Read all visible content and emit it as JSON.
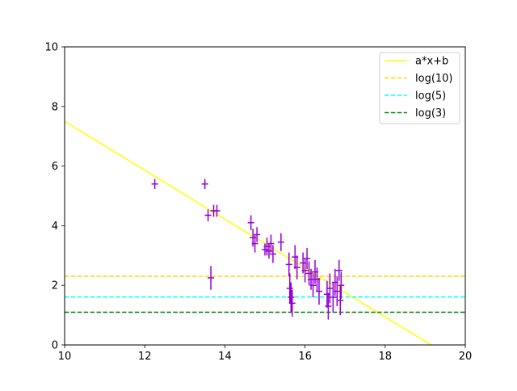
{
  "chart_data": {
    "type": "scatter",
    "title": "",
    "xlabel": "",
    "ylabel": "",
    "xlim": [
      10,
      20
    ],
    "ylim": [
      0,
      10
    ],
    "xticks": [
      10,
      12,
      14,
      16,
      18,
      20
    ],
    "yticks": [
      0,
      2,
      4,
      6,
      8,
      10
    ],
    "grid": false,
    "legend_position": "top-right",
    "fit_line": {
      "name": "a*x+b",
      "color": "#ffff00",
      "slope": -0.82,
      "intercept": 15.7
    },
    "hlines": [
      {
        "name": "log(10)",
        "y": 2.303,
        "color": "#ffd700"
      },
      {
        "name": "log(5)",
        "y": 1.609,
        "color": "#00ffff"
      },
      {
        "name": "log(3)",
        "y": 1.099,
        "color": "#008000"
      }
    ],
    "points_color": "#9400d3",
    "points": [
      {
        "x": 12.25,
        "y": 5.4,
        "yerr": 0.17
      },
      {
        "x": 13.5,
        "y": 5.4,
        "yerr": 0.17
      },
      {
        "x": 13.58,
        "y": 4.35,
        "yerr": 0.2
      },
      {
        "x": 13.65,
        "y": 2.25,
        "yerr": 0.4
      },
      {
        "x": 13.72,
        "y": 4.5,
        "yerr": 0.2
      },
      {
        "x": 13.8,
        "y": 4.5,
        "yerr": 0.2
      },
      {
        "x": 14.65,
        "y": 4.1,
        "yerr": 0.25
      },
      {
        "x": 14.7,
        "y": 3.6,
        "yerr": 0.3
      },
      {
        "x": 14.75,
        "y": 3.4,
        "yerr": 0.3
      },
      {
        "x": 14.8,
        "y": 3.7,
        "yerr": 0.25
      },
      {
        "x": 15.0,
        "y": 3.2,
        "yerr": 0.2
      },
      {
        "x": 15.05,
        "y": 3.3,
        "yerr": 0.3
      },
      {
        "x": 15.1,
        "y": 3.15,
        "yerr": 0.25
      },
      {
        "x": 15.15,
        "y": 3.4,
        "yerr": 0.3
      },
      {
        "x": 15.2,
        "y": 3.05,
        "yerr": 0.3
      },
      {
        "x": 15.4,
        "y": 3.45,
        "yerr": 0.3
      },
      {
        "x": 15.6,
        "y": 2.7,
        "yerr": 0.4
      },
      {
        "x": 15.62,
        "y": 1.9,
        "yerr": 0.5
      },
      {
        "x": 15.65,
        "y": 1.6,
        "yerr": 0.5
      },
      {
        "x": 15.68,
        "y": 1.4,
        "yerr": 0.45
      },
      {
        "x": 15.75,
        "y": 2.95,
        "yerr": 0.4
      },
      {
        "x": 15.8,
        "y": 2.6,
        "yerr": 0.4
      },
      {
        "x": 15.95,
        "y": 2.75,
        "yerr": 0.35
      },
      {
        "x": 16.0,
        "y": 2.5,
        "yerr": 0.4
      },
      {
        "x": 16.05,
        "y": 2.9,
        "yerr": 0.35
      },
      {
        "x": 16.1,
        "y": 2.4,
        "yerr": 0.4
      },
      {
        "x": 16.15,
        "y": 2.2,
        "yerr": 0.35
      },
      {
        "x": 16.2,
        "y": 2.0,
        "yerr": 0.4
      },
      {
        "x": 16.25,
        "y": 2.45,
        "yerr": 0.4
      },
      {
        "x": 16.3,
        "y": 2.2,
        "yerr": 0.4
      },
      {
        "x": 16.35,
        "y": 1.8,
        "yerr": 0.45
      },
      {
        "x": 16.55,
        "y": 1.7,
        "yerr": 0.45
      },
      {
        "x": 16.58,
        "y": 1.3,
        "yerr": 0.45
      },
      {
        "x": 16.62,
        "y": 1.9,
        "yerr": 0.5
      },
      {
        "x": 16.7,
        "y": 1.6,
        "yerr": 0.5
      },
      {
        "x": 16.75,
        "y": 2.1,
        "yerr": 0.45
      },
      {
        "x": 16.8,
        "y": 1.8,
        "yerr": 0.5
      },
      {
        "x": 16.85,
        "y": 2.5,
        "yerr": 0.35
      },
      {
        "x": 16.88,
        "y": 1.5,
        "yerr": 0.5
      },
      {
        "x": 16.9,
        "y": 2.0,
        "yerr": 0.45
      }
    ]
  }
}
